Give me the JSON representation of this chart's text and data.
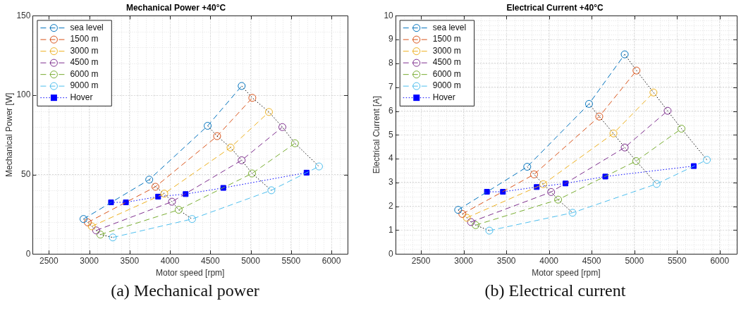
{
  "chart_data": [
    {
      "type": "line",
      "title": "Mechanical Power +40°C",
      "xlabel": "Motor speed [rpm]",
      "ylabel": "Mechanical Power [W]",
      "xlim": [
        2300,
        6200
      ],
      "xticks": [
        2500,
        3000,
        3500,
        4000,
        4500,
        5000,
        5500,
        6000
      ],
      "ylim": [
        0,
        150
      ],
      "yticks": [
        0,
        50,
        100,
        150
      ],
      "grid": true,
      "legend": "top left",
      "line_style": "dashed",
      "marker": "circle",
      "annotations": [
        "(a) Mechanical power"
      ],
      "series": [
        {
          "name": "sea level",
          "color": "#0072bd",
          "x": [
            2929,
            3743,
            4467,
            4888
          ],
          "values": [
            22.0,
            46.8,
            80.7,
            105.8
          ]
        },
        {
          "name": "1500 m",
          "color": "#d95319",
          "x": [
            2982,
            3820,
            4584,
            5020
          ],
          "values": [
            19.9,
            42.3,
            74.2,
            98.3
          ]
        },
        {
          "name": "3000 m",
          "color": "#edb120",
          "x": [
            3031,
            3930,
            4750,
            5226
          ],
          "values": [
            17.4,
            38.0,
            67.0,
            89.4
          ]
        },
        {
          "name": "4500 m",
          "color": "#7e2f8e",
          "x": [
            3086,
            4025,
            4888,
            5392
          ],
          "values": [
            14.8,
            32.9,
            59.0,
            79.9
          ]
        },
        {
          "name": "6000 m",
          "color": "#77ac30",
          "x": [
            3138,
            4108,
            5017,
            5548
          ],
          "values": [
            12.2,
            27.8,
            50.7,
            69.7
          ]
        },
        {
          "name": "9000 m",
          "color": "#4dbeee",
          "x": [
            3292,
            4274,
            5256,
            5846
          ],
          "values": [
            10.4,
            22.0,
            40.1,
            55.1
          ]
        },
        {
          "name": "Hover",
          "color": "#0000ff",
          "marker": "square",
          "line_style": "dotted",
          "x": [
            3270,
            3454,
            3853,
            4194,
            4661,
            5692
          ],
          "values": [
            32.5,
            32.5,
            36.1,
            37.7,
            41.6,
            51.2
          ]
        },
        {
          "color": "#000000",
          "marker": "none",
          "line_style": "dotted",
          "x": [
            2929,
            2982,
            3031,
            3086,
            3138,
            3292
          ],
          "values": [
            22.0,
            19.9,
            17.4,
            14.8,
            12.2,
            10.4
          ]
        },
        {
          "color": "#000000",
          "marker": "none",
          "line_style": "dotted",
          "x": [
            3743,
            3820,
            3930,
            4025,
            4108,
            4274
          ],
          "values": [
            46.8,
            42.3,
            38.0,
            32.9,
            27.8,
            22.0
          ]
        },
        {
          "color": "#000000",
          "marker": "none",
          "line_style": "dotted",
          "x": [
            4467,
            4584,
            4750,
            4888,
            5017,
            5256
          ],
          "values": [
            80.7,
            74.2,
            67.0,
            59.0,
            50.7,
            40.1
          ]
        },
        {
          "color": "#000000",
          "marker": "none",
          "line_style": "dotted",
          "x": [
            4888,
            5020,
            5226,
            5392,
            5548,
            5846
          ],
          "values": [
            105.8,
            98.3,
            89.4,
            79.9,
            69.7,
            55.1
          ]
        }
      ]
    },
    {
      "type": "line",
      "title": "Electrical Current +40°C",
      "xlabel": "Motor speed [rpm]",
      "ylabel": "Electrical Current [A]",
      "xlim": [
        2200,
        6200
      ],
      "xticks": [
        2500,
        3000,
        3500,
        4000,
        4500,
        5000,
        5500,
        6000
      ],
      "ylim": [
        0,
        10
      ],
      "yticks": [
        0,
        1,
        2,
        3,
        4,
        5,
        6,
        7,
        8,
        9,
        10
      ],
      "grid": true,
      "legend": "top left",
      "line_style": "dashed",
      "marker": "circle",
      "annotations": [
        "(b) Electrical current"
      ],
      "series": [
        {
          "name": "sea level",
          "color": "#0072bd",
          "x": [
            2936,
            3745,
            4469,
            4887
          ],
          "values": [
            1.85,
            3.66,
            6.3,
            8.38
          ]
        },
        {
          "name": "1500 m",
          "color": "#d95319",
          "x": [
            2985,
            3825,
            4589,
            5025
          ],
          "values": [
            1.68,
            3.34,
            5.77,
            7.7
          ]
        },
        {
          "name": "3000 m",
          "color": "#edb120",
          "x": [
            3037,
            3933,
            4755,
            5224
          ],
          "values": [
            1.52,
            2.93,
            5.06,
            6.78
          ]
        },
        {
          "name": "4500 m",
          "color": "#7e2f8e",
          "x": [
            3086,
            4025,
            4887,
            5390
          ],
          "values": [
            1.34,
            2.6,
            4.47,
            6.01
          ]
        },
        {
          "name": "6000 m",
          "color": "#77ac30",
          "x": [
            3141,
            4107,
            5021,
            5552
          ],
          "values": [
            1.21,
            2.28,
            3.9,
            5.26
          ]
        },
        {
          "name": "9000 m",
          "color": "#4dbeee",
          "x": [
            3301,
            4276,
            5261,
            5850
          ],
          "values": [
            0.98,
            1.73,
            2.94,
            3.95
          ]
        },
        {
          "name": "Hover",
          "color": "#0000ff",
          "marker": "square",
          "line_style": "dotted",
          "x": [
            3273,
            3460,
            3856,
            4193,
            4660,
            5696
          ],
          "values": [
            2.61,
            2.61,
            2.81,
            2.96,
            3.25,
            3.69
          ]
        },
        {
          "color": "#000000",
          "marker": "none",
          "line_style": "dotted",
          "x": [
            2936,
            2985,
            3037,
            3086,
            3141,
            3301
          ],
          "values": [
            1.85,
            1.68,
            1.52,
            1.34,
            1.21,
            0.98
          ]
        },
        {
          "color": "#000000",
          "marker": "none",
          "line_style": "dotted",
          "x": [
            3745,
            3825,
            3933,
            4025,
            4107,
            4276
          ],
          "values": [
            3.66,
            3.34,
            2.93,
            2.6,
            2.28,
            1.73
          ]
        },
        {
          "color": "#000000",
          "marker": "none",
          "line_style": "dotted",
          "x": [
            4469,
            4589,
            4755,
            4887,
            5021,
            5261
          ],
          "values": [
            6.3,
            5.77,
            5.06,
            4.47,
            3.9,
            2.94
          ]
        },
        {
          "color": "#000000",
          "marker": "none",
          "line_style": "dotted",
          "x": [
            4887,
            5025,
            5224,
            5390,
            5552,
            5850
          ],
          "values": [
            8.38,
            7.7,
            6.78,
            6.01,
            5.26,
            3.95
          ]
        }
      ]
    }
  ]
}
